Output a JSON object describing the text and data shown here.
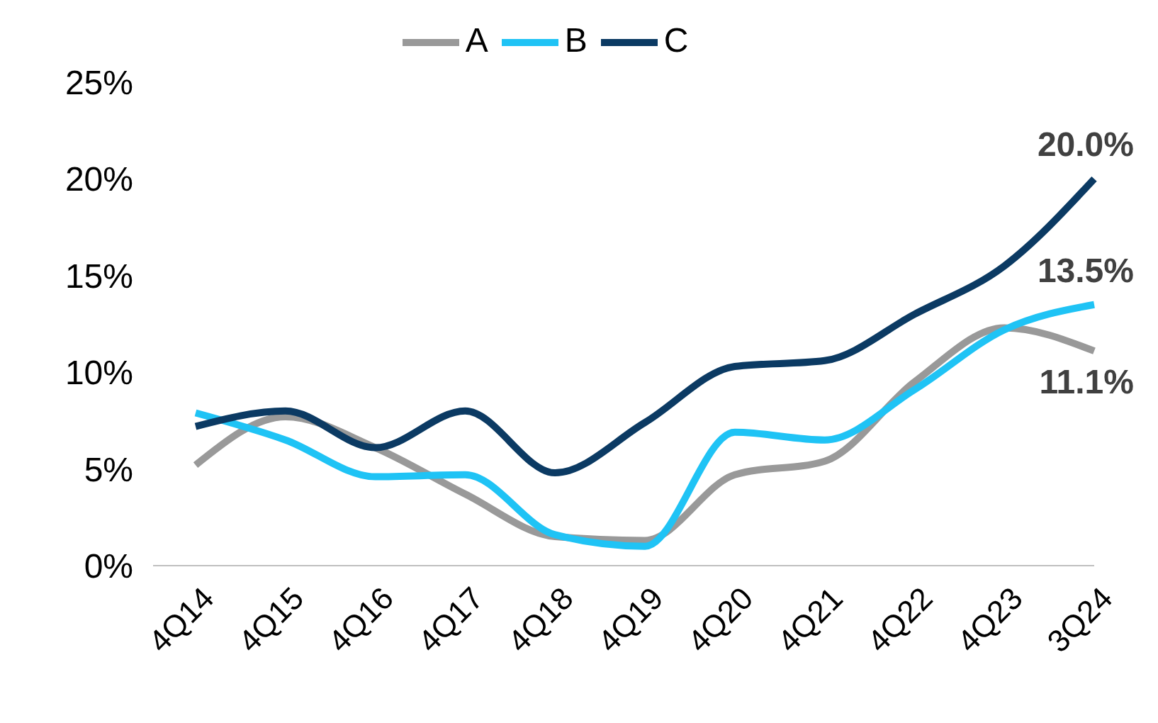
{
  "chart_data": {
    "type": "line",
    "categories": [
      "4Q14",
      "4Q15",
      "4Q16",
      "4Q17",
      "4Q18",
      "4Q19",
      "4Q20",
      "4Q21",
      "4Q22",
      "4Q23",
      "3Q24"
    ],
    "series": [
      {
        "name": "A",
        "color": "#999999",
        "values": [
          5.2,
          7.7,
          6.1,
          3.7,
          1.5,
          1.3,
          4.7,
          5.4,
          9.5,
          12.3,
          11.1
        ],
        "value_labels": [
          null,
          null,
          null,
          null,
          null,
          null,
          null,
          null,
          null,
          null,
          "11.1%"
        ]
      },
      {
        "name": "B",
        "color": "#1fc3f5",
        "values": [
          7.9,
          6.5,
          4.6,
          4.7,
          1.6,
          1.0,
          6.9,
          6.5,
          9.1,
          12.2,
          13.5
        ],
        "value_labels": [
          null,
          null,
          null,
          null,
          null,
          null,
          null,
          null,
          null,
          null,
          "13.5%"
        ]
      },
      {
        "name": "C",
        "color": "#0b3a63",
        "values": [
          7.2,
          8.0,
          6.1,
          8.0,
          4.8,
          7.4,
          10.3,
          10.6,
          13.0,
          15.5,
          20.0
        ],
        "value_labels": [
          null,
          null,
          null,
          null,
          null,
          null,
          null,
          null,
          null,
          null,
          "20.0%"
        ]
      }
    ],
    "ylim": [
      0,
      25
    ],
    "yticks": [
      {
        "value": 0,
        "label": "0%"
      },
      {
        "value": 5,
        "label": "5%"
      },
      {
        "value": 10,
        "label": "10%"
      },
      {
        "value": 15,
        "label": "15%"
      },
      {
        "value": 20,
        "label": "20%"
      },
      {
        "value": 25,
        "label": "25%"
      }
    ],
    "grid": false,
    "legend": "top",
    "marker": "none",
    "line_style": "solid"
  }
}
